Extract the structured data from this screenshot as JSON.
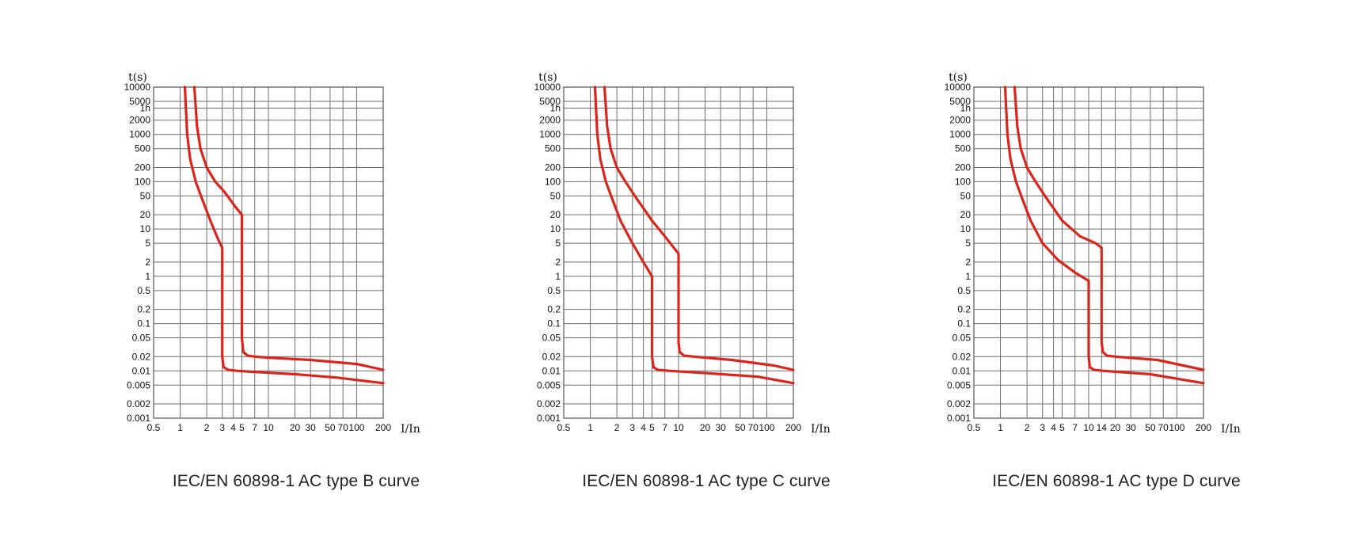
{
  "chart_data": [
    {
      "type": "line",
      "title": "IEC/EN 60898-1 AC type B curve",
      "xlabel": "I/In",
      "ylabel": "t(s)",
      "x_scale": "log",
      "y_scale": "log",
      "xlim": [
        0.5,
        200
      ],
      "ylim": [
        0.001,
        10000
      ],
      "x_tick_labels": [
        "0.5",
        "1",
        "2",
        "3",
        "4",
        "5",
        "7",
        "10",
        "20",
        "30",
        "50",
        "70",
        "100",
        "200"
      ],
      "y_tick_labels": [
        "10000",
        "5000",
        "1h",
        "2000",
        "1000",
        "500",
        "200",
        "100",
        "50",
        "20",
        "10",
        "5",
        "2",
        "1",
        "0.5",
        "0.2",
        "0.1",
        "0.05",
        "0.02",
        "0.01",
        "0.005",
        "0.002",
        "0.001"
      ],
      "series": [
        {
          "x": [
            1.13,
            1.2,
            1.3,
            1.5,
            1.8,
            2.2,
            2.7,
            3,
            3,
            3.1,
            3.5,
            4.5,
            7,
            20,
            60,
            200
          ],
          "y": [
            10000,
            1000,
            300,
            100,
            40,
            15,
            6,
            4,
            0.02,
            0.012,
            0.0105,
            0.01,
            0.0095,
            0.0085,
            0.0072,
            0.0055
          ]
        },
        {
          "x": [
            1.45,
            1.55,
            1.7,
            2,
            2.5,
            3.2,
            4.2,
            5,
            5,
            5.2,
            5.8,
            7,
            10,
            30,
            100,
            200
          ],
          "y": [
            10000,
            1500,
            500,
            200,
            100,
            60,
            30,
            20,
            0.05,
            0.025,
            0.021,
            0.02,
            0.019,
            0.017,
            0.014,
            0.0105
          ]
        }
      ],
      "color": "#d9261c"
    },
    {
      "type": "line",
      "title": "IEC/EN 60898-1 AC type C curve",
      "xlabel": "I/In",
      "ylabel": "t(s)",
      "x_scale": "log",
      "y_scale": "log",
      "xlim": [
        0.5,
        200
      ],
      "ylim": [
        0.001,
        10000
      ],
      "x_tick_labels": [
        "0.5",
        "1",
        "2",
        "3",
        "4",
        "5",
        "7",
        "10",
        "20",
        "30",
        "50",
        "70",
        "100",
        "200"
      ],
      "y_tick_labels": [
        "10000",
        "5000",
        "1h",
        "2000",
        "1000",
        "500",
        "200",
        "100",
        "50",
        "20",
        "10",
        "5",
        "2",
        "1",
        "0.5",
        "0.2",
        "0.1",
        "0.05",
        "0.02",
        "0.01",
        "0.005",
        "0.002",
        "0.001"
      ],
      "series": [
        {
          "x": [
            1.13,
            1.2,
            1.3,
            1.5,
            1.8,
            2.2,
            3,
            4,
            5,
            5,
            5.2,
            5.8,
            8,
            20,
            80,
            200
          ],
          "y": [
            10000,
            1000,
            300,
            100,
            40,
            15,
            5,
            2,
            1,
            0.02,
            0.012,
            0.0105,
            0.01,
            0.009,
            0.0075,
            0.0055
          ]
        },
        {
          "x": [
            1.45,
            1.55,
            1.7,
            2,
            2.5,
            3.2,
            5,
            7,
            10,
            10,
            10.3,
            11.5,
            15,
            40,
            120,
            200
          ],
          "y": [
            10000,
            1500,
            500,
            200,
            100,
            50,
            15,
            7,
            3,
            0.04,
            0.025,
            0.021,
            0.02,
            0.017,
            0.013,
            0.0105
          ]
        }
      ],
      "color": "#d9261c"
    },
    {
      "type": "line",
      "title": "IEC/EN 60898-1 AC type D curve",
      "xlabel": "I/In",
      "ylabel": "t(s)",
      "x_scale": "log",
      "y_scale": "log",
      "xlim": [
        0.5,
        200
      ],
      "ylim": [
        0.001,
        10000
      ],
      "x_tick_labels": [
        "0.5",
        "1",
        "2",
        "3",
        "4",
        "5",
        "7",
        "10",
        "14",
        "20",
        "30",
        "50",
        "70",
        "100",
        "200"
      ],
      "y_tick_labels": [
        "10000",
        "5000",
        "1h",
        "2000",
        "1000",
        "500",
        "200",
        "100",
        "50",
        "20",
        "10",
        "5",
        "2",
        "1",
        "0.5",
        "0.2",
        "0.1",
        "0.05",
        "0.02",
        "0.01",
        "0.005",
        "0.002",
        "0.001"
      ],
      "series": [
        {
          "x": [
            1.13,
            1.2,
            1.3,
            1.5,
            1.8,
            2.2,
            3,
            4.5,
            7,
            10,
            10,
            10.3,
            11.5,
            15,
            50,
            200
          ],
          "y": [
            10000,
            1000,
            300,
            100,
            40,
            15,
            5,
            2.2,
            1.2,
            0.8,
            0.02,
            0.012,
            0.0105,
            0.01,
            0.0085,
            0.0055
          ]
        },
        {
          "x": [
            1.45,
            1.55,
            1.7,
            2,
            2.5,
            3.2,
            5,
            8,
            12,
            14,
            14,
            14.5,
            16,
            20,
            60,
            200
          ],
          "y": [
            10000,
            1500,
            500,
            200,
            100,
            50,
            15,
            7,
            5,
            4,
            0.04,
            0.025,
            0.021,
            0.02,
            0.017,
            0.0105
          ]
        }
      ],
      "color": "#d9261c"
    }
  ]
}
